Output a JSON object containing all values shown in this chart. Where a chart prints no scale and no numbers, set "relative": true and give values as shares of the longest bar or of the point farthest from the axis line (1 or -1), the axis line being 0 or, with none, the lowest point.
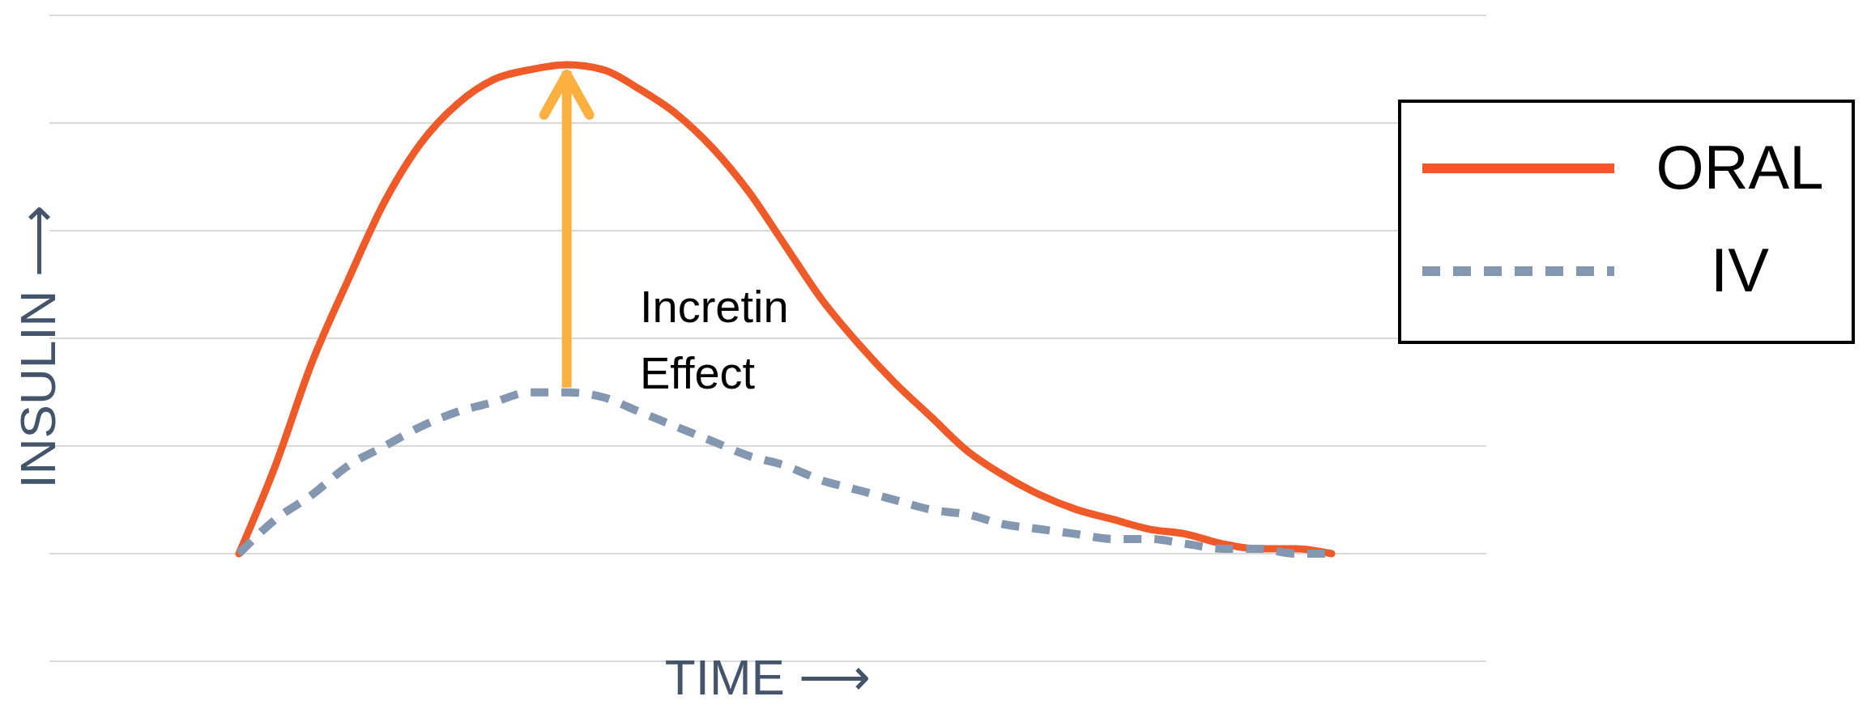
{
  "chart_data": {
    "type": "line",
    "relative": true,
    "grid": "y",
    "legend": "top right",
    "xlabel": "TIME ⟶",
    "ylabel": "INSULIN ⟶",
    "annotations": [
      "Incretin Effect"
    ],
    "categories": [
      null,
      null,
      null,
      null,
      null,
      null,
      null,
      null,
      null,
      null,
      null,
      null,
      null,
      null,
      null,
      null,
      null,
      null,
      null,
      null,
      null,
      null,
      null,
      null,
      null,
      null,
      null,
      null,
      null,
      null,
      null
    ],
    "series": [
      {
        "name": "ORAL",
        "color": "#f05a28",
        "line_style": "solid",
        "values": [
          0,
          0.18,
          0.39,
          0.56,
          0.72,
          0.84,
          0.92,
          0.97,
          0.99,
          1,
          0.99,
          0.95,
          0.9,
          0.83,
          0.74,
          0.63,
          0.52,
          0.43,
          0.35,
          0.28,
          0.21,
          0.16,
          0.12,
          0.09,
          0.07,
          0.05,
          0.04,
          0.02,
          0.01,
          0.01,
          0
        ]
      },
      {
        "name": "IV",
        "color": "#8497b0",
        "line_style": "dashed",
        "values": [
          0,
          0.07,
          0.12,
          0.18,
          0.22,
          0.26,
          0.29,
          0.31,
          0.33,
          0.33,
          0.32,
          0.29,
          0.26,
          0.23,
          0.2,
          0.18,
          0.15,
          0.13,
          0.11,
          0.09,
          0.08,
          0.06,
          0.05,
          0.04,
          0.03,
          0.03,
          0.02,
          0.01,
          0.01,
          0,
          0
        ]
      }
    ]
  }
}
